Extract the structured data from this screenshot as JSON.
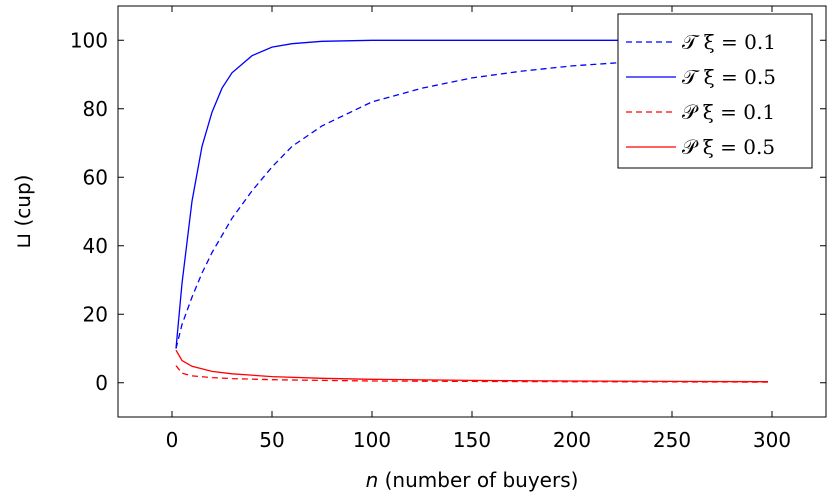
{
  "chart_data": {
    "type": "line",
    "xlabel_var": "n",
    "xlabel_rest": " (number of buyers)",
    "ylabel": "⊔ (cup)",
    "xlim": [
      -27,
      327
    ],
    "ylim": [
      -10,
      110
    ],
    "xticks": [
      0,
      50,
      100,
      150,
      200,
      250,
      300
    ],
    "yticks": [
      0,
      20,
      40,
      60,
      80,
      100
    ],
    "grid": false,
    "legend_position": "top-right",
    "series": [
      {
        "name": "𝒯 ξ = 0.1",
        "color": "#0000ff",
        "dash": "dashed",
        "x": [
          2,
          5,
          10,
          15,
          20,
          30,
          40,
          50,
          60,
          75,
          100,
          125,
          150,
          175,
          200,
          225,
          250,
          275,
          298
        ],
        "y": [
          10,
          17,
          25,
          32,
          38,
          48,
          56,
          63,
          69,
          75,
          82,
          86,
          89,
          91,
          92.5,
          93.5,
          94.5,
          95.5,
          96
        ]
      },
      {
        "name": "𝒯 ξ = 0.5",
        "color": "#0000ff",
        "dash": "solid",
        "x": [
          2,
          5,
          10,
          15,
          20,
          25,
          30,
          40,
          50,
          60,
          75,
          100,
          125,
          150,
          200,
          250,
          298
        ],
        "y": [
          10,
          29,
          53,
          69,
          79,
          86,
          90.5,
          95.5,
          98,
          99,
          99.7,
          100,
          100,
          100,
          100,
          100,
          100
        ]
      },
      {
        "name": "𝒫 ξ = 0.1",
        "color": "#ff0000",
        "dash": "dashed",
        "x": [
          2,
          5,
          10,
          20,
          30,
          50,
          75,
          100,
          150,
          200,
          250,
          298
        ],
        "y": [
          5,
          2.8,
          2,
          1.5,
          1.2,
          0.9,
          0.7,
          0.5,
          0.4,
          0.3,
          0.25,
          0.2
        ]
      },
      {
        "name": "𝒫 ξ = 0.5",
        "color": "#ff0000",
        "dash": "solid",
        "x": [
          2,
          5,
          10,
          20,
          30,
          50,
          75,
          100,
          150,
          200,
          250,
          298
        ],
        "y": [
          9.5,
          6.5,
          4.8,
          3.3,
          2.6,
          1.8,
          1.3,
          1.0,
          0.7,
          0.5,
          0.4,
          0.3
        ]
      }
    ]
  }
}
